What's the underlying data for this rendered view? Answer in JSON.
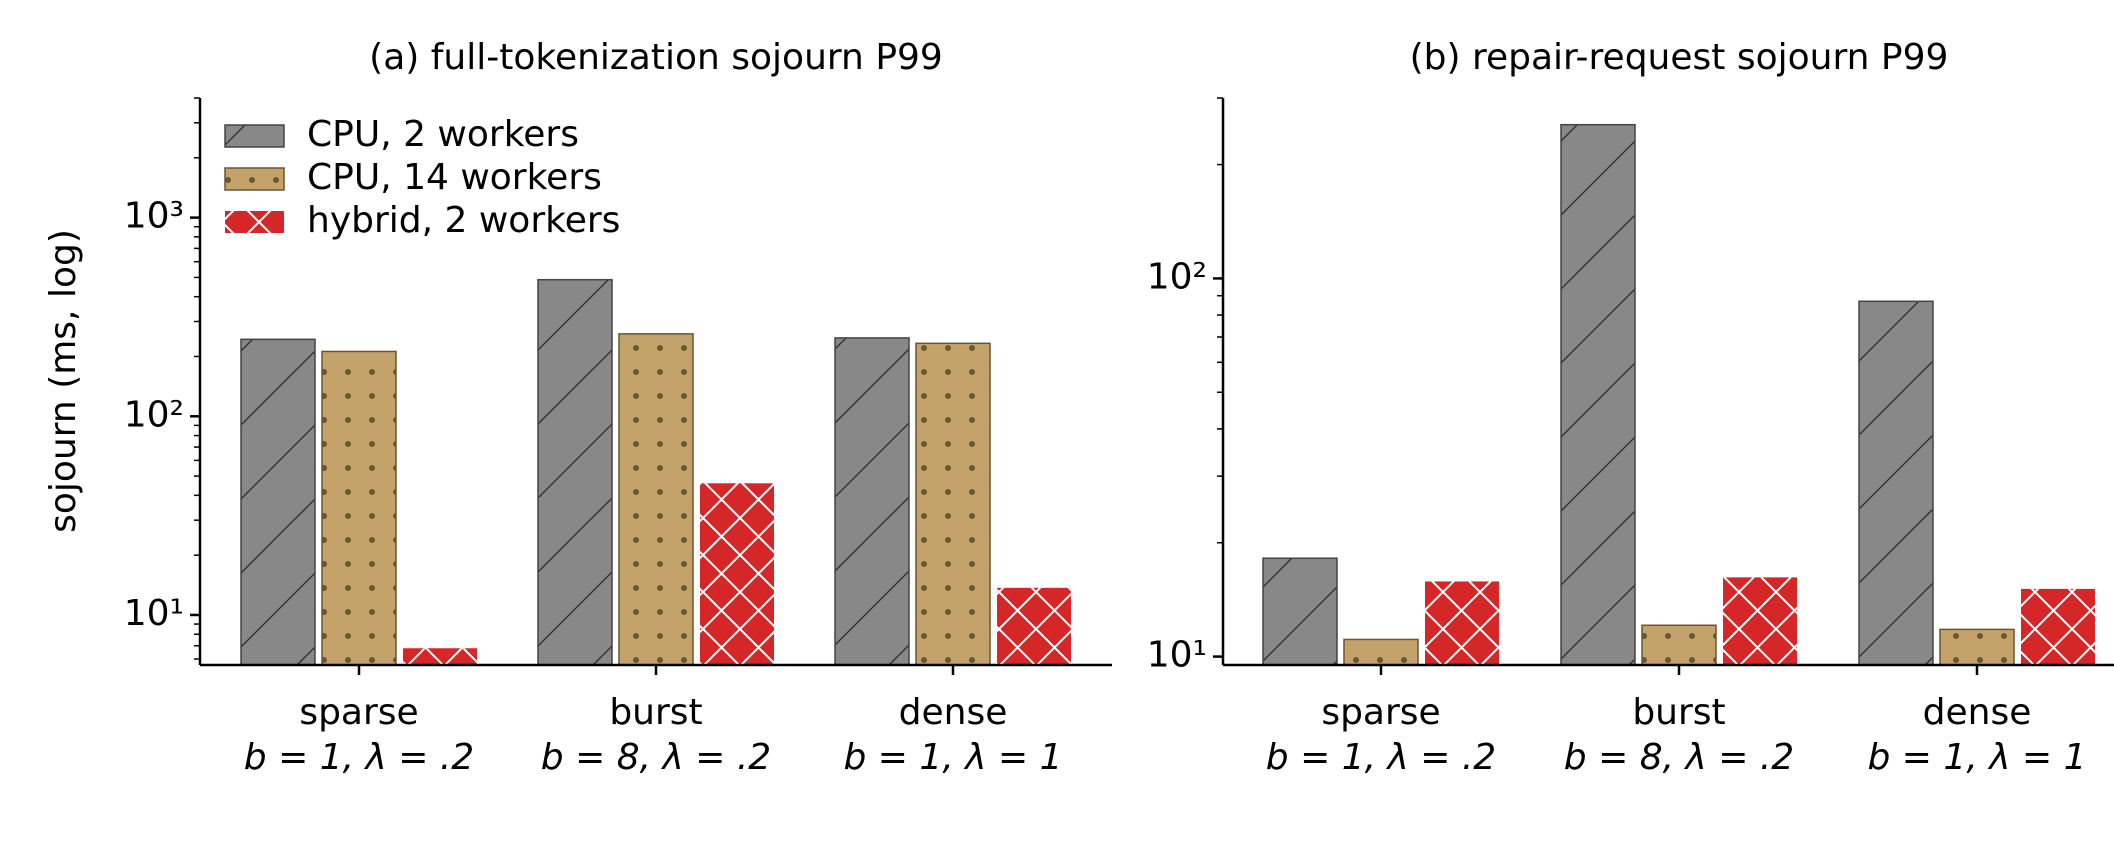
{
  "chart_data": [
    {
      "type": "bar",
      "title": "(a) full-tokenization sojourn P99",
      "ylabel": "sojourn (ms, log)",
      "log_scale": true,
      "legend": "upper left",
      "categories": [
        [
          "sparse",
          "b = 1, λ = .2"
        ],
        [
          "burst",
          "b = 8, λ = .2"
        ],
        [
          "dense",
          "b = 1, λ = 1"
        ]
      ],
      "series": [
        {
          "name": "CPU, 2 workers",
          "color": "#888888",
          "hatch": "/",
          "values": [
            244,
            487,
            248
          ]
        },
        {
          "name": "CPU, 14 workers",
          "color": "#c4a36a",
          "hatch": ".",
          "values": [
            212,
            260,
            233
          ]
        },
        {
          "name": "hybrid, 2 workers",
          "color": "#d62728",
          "hatch": "x",
          "values": [
            6.8,
            46,
            13.7
          ]
        }
      ],
      "ylim": [
        5.6,
        4000
      ],
      "yticks": [
        {
          "value": 10,
          "label": "10¹"
        },
        {
          "value": 100,
          "label": "10²"
        },
        {
          "value": 1000,
          "label": "10³"
        }
      ],
      "yminor": [
        6,
        7,
        8,
        9,
        20,
        30,
        40,
        50,
        60,
        70,
        80,
        90,
        200,
        300,
        400,
        500,
        600,
        700,
        800,
        900,
        2000,
        3000,
        4000
      ]
    },
    {
      "type": "bar",
      "title": "(b) repair-request sojourn P99",
      "log_scale": true,
      "categories": [
        [
          "sparse",
          "b = 1, λ = .2"
        ],
        [
          "burst",
          "b = 8, λ = .2"
        ],
        [
          "dense",
          "b = 1, λ = 1"
        ]
      ],
      "series": [
        {
          "color": "#888888",
          "hatch": "/",
          "values": [
            18.2,
            255,
            87
          ]
        },
        {
          "color": "#c4a36a",
          "hatch": ".",
          "values": [
            11.1,
            12.1,
            11.8
          ]
        },
        {
          "color": "#d62728",
          "hatch": "x",
          "values": [
            15.8,
            16.2,
            15.1
          ]
        }
      ],
      "ylim": [
        9.5,
        300
      ],
      "yticks": [
        {
          "value": 10,
          "label": "10¹"
        },
        {
          "value": 100,
          "label": "10²"
        }
      ],
      "yminor": [
        20,
        30,
        40,
        50,
        60,
        70,
        80,
        90,
        200,
        300
      ]
    }
  ]
}
